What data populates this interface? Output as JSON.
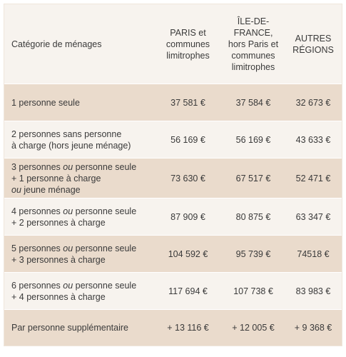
{
  "header": {
    "category": "Catégorie de ménages",
    "paris": [
      "PARIS et",
      "communes",
      "limitrophes"
    ],
    "idf": [
      "ÎLE-DE-",
      "FRANCE,",
      "hors Paris et",
      "communes",
      "limitrophes"
    ],
    "autres": [
      "AUTRES",
      "RÉGIONS"
    ]
  },
  "rows": [
    {
      "label": [
        [
          "1 personne seule"
        ]
      ],
      "paris": "37 581 €",
      "idf": "37 584 €",
      "autres": "32 673 €"
    },
    {
      "label": [
        [
          "2 personnes sans personne"
        ],
        [
          "à charge (hors jeune ménage)"
        ]
      ],
      "paris": "56 169 €",
      "idf": "56 169 €",
      "autres": "43 633 €"
    },
    {
      "label": [
        [
          "3 personnes ",
          "ou",
          " personne seule"
        ],
        [
          "+ 1 personne à charge"
        ],
        [
          "",
          "ou",
          " jeune ménage"
        ]
      ],
      "paris": "73 630 €",
      "idf": "67 517 €",
      "autres": "52 471 €"
    },
    {
      "label": [
        [
          "4 personnes ",
          "ou",
          " personne seule"
        ],
        [
          "+ 2 personnes à charge"
        ]
      ],
      "paris": "87 909 €",
      "idf": "80 875 €",
      "autres": "63 347 €"
    },
    {
      "label": [
        [
          "5 personnes ",
          "ou",
          " personne seule"
        ],
        [
          "+ 3 personnes à charge"
        ]
      ],
      "paris": "104 592 €",
      "idf": "95 739 €",
      "autres": "74518 €"
    },
    {
      "label": [
        [
          "6 personnes ",
          "ou",
          " personne seule"
        ],
        [
          "+ 4 personnes à charge"
        ]
      ],
      "paris": "117 694 €",
      "idf": "107 738 €",
      "autres": "83 983 €"
    },
    {
      "label": [
        [
          "Par personne supplémentaire"
        ]
      ],
      "paris": "+ 13 116 €",
      "idf": "+ 12 005 €",
      "autres": "+ 9 368 €"
    }
  ]
}
